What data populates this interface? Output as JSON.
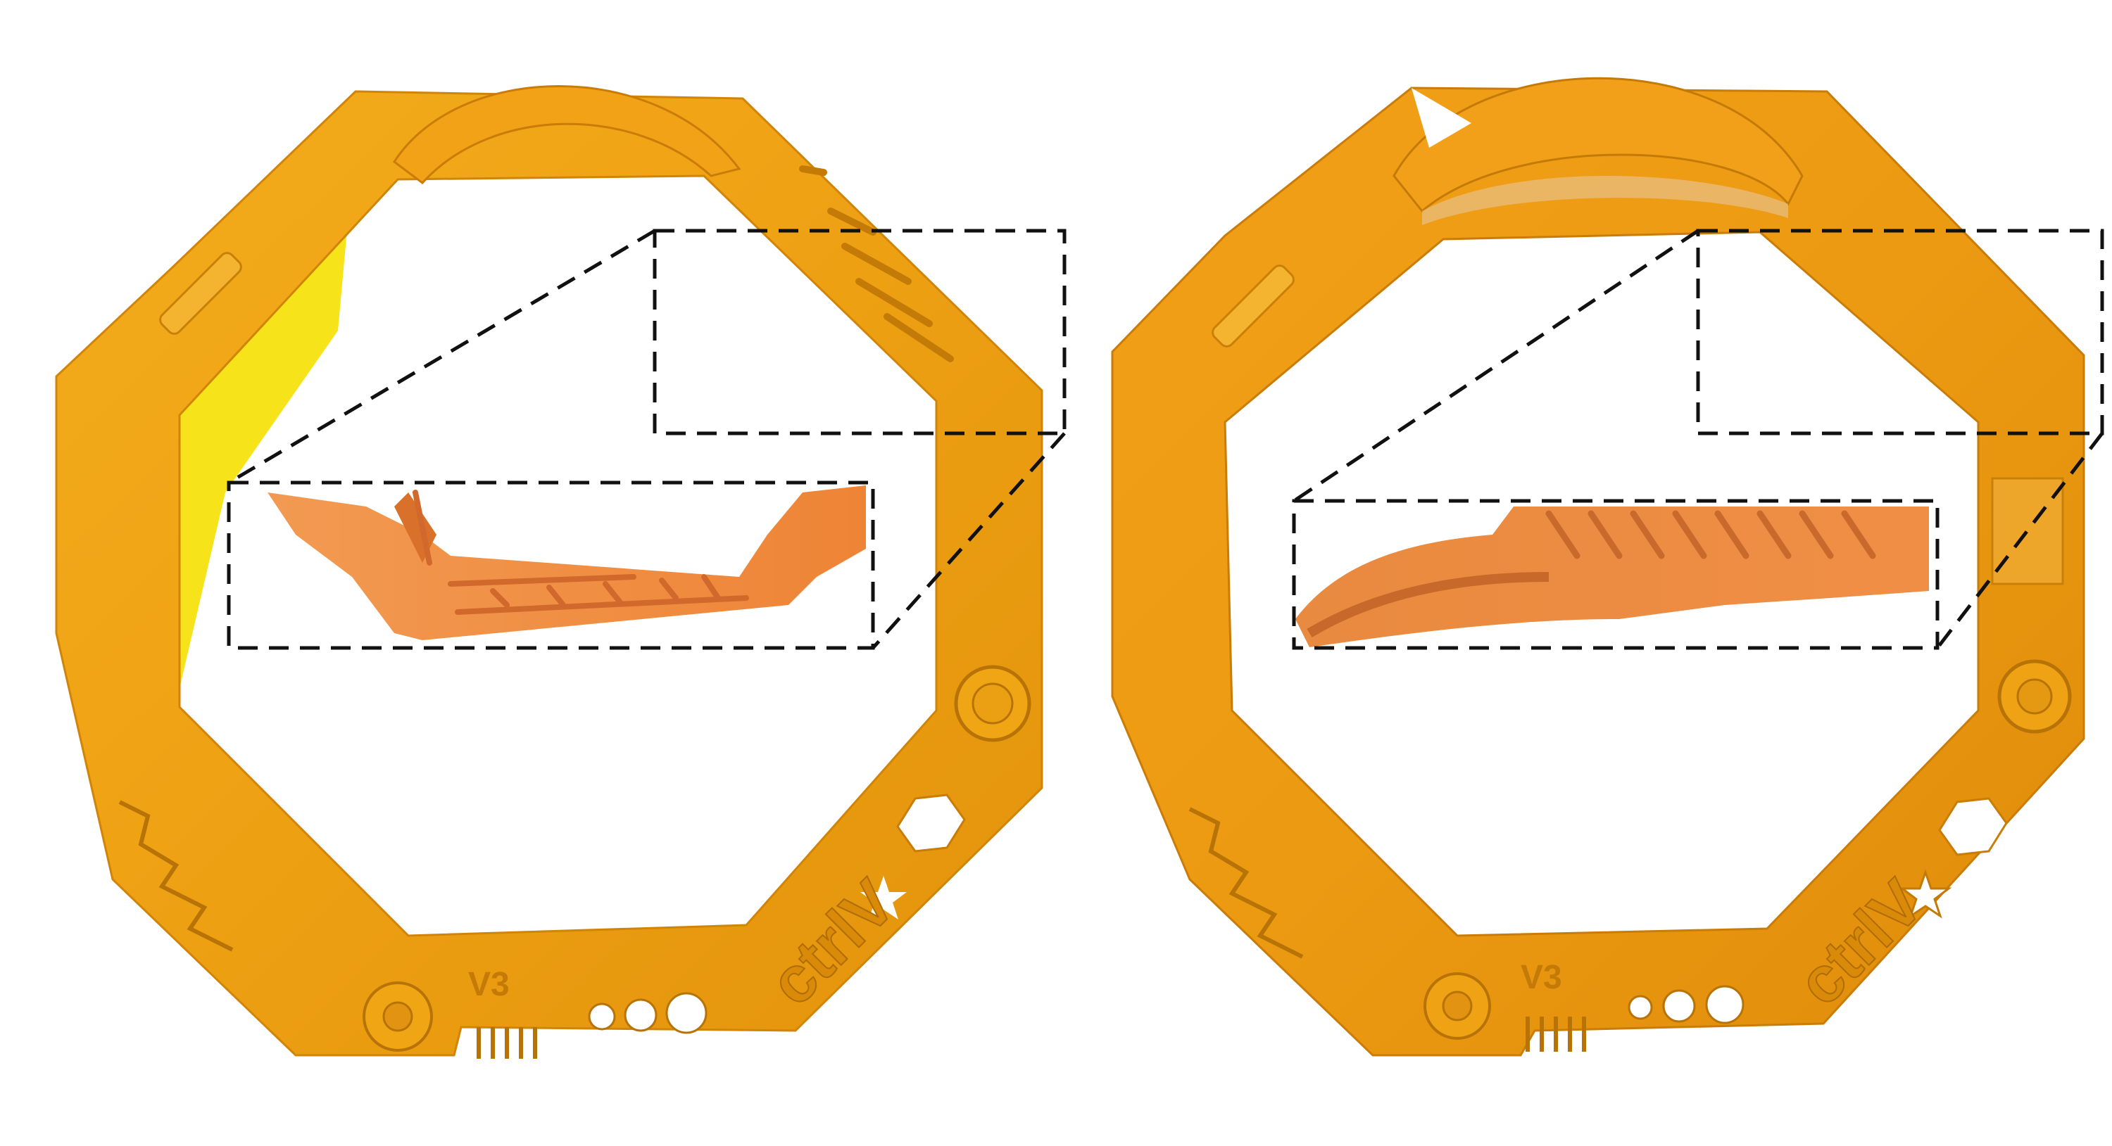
{
  "figure": {
    "panels": [
      {
        "id": "left",
        "part_text": "ctrlV",
        "version_text": "V3",
        "inset_contents": "close-up of printed comb-like bridge features"
      },
      {
        "id": "right",
        "part_text": "ctrlV",
        "version_text": "V3",
        "inset_contents": "close-up of curved bridge with ridges"
      }
    ],
    "colors": {
      "print_orange": "#f0a514",
      "print_dark": "#d9890a",
      "print_light": "#f7bd3b",
      "inset_orange": "#f08a3c",
      "dash": "#111111",
      "yellow_edge": "#f6e000"
    }
  }
}
